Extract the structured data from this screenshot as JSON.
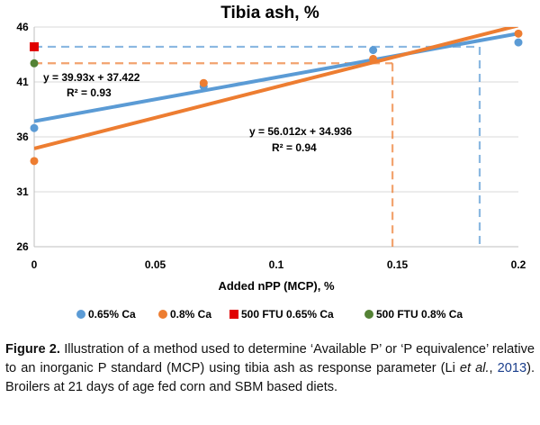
{
  "chart_data": {
    "type": "scatter",
    "title": "Tibia ash, %",
    "xlabel": "Added nPP (MCP), %",
    "ylabel": "",
    "xlim": [
      0,
      0.2
    ],
    "ylim": [
      26,
      46
    ],
    "x_ticks": [
      "0",
      "0.05",
      "0.1",
      "0.15",
      "0.2"
    ],
    "y_ticks": [
      "26",
      "31",
      "36",
      "41",
      "46"
    ],
    "series": [
      {
        "name": "0.65% Ca",
        "color": "#5b9bd5",
        "marker": "circle",
        "points": [
          [
            0,
            36.8
          ],
          [
            0.07,
            40.6
          ],
          [
            0.14,
            43.9
          ],
          [
            0.2,
            44.6
          ]
        ],
        "trendline": {
          "slope": 39.93,
          "intercept": 37.422,
          "equation": "y = 39.93x + 37.422",
          "r2": "R² = 0.93"
        }
      },
      {
        "name": "0.8% Ca",
        "color": "#ed7d31",
        "marker": "circle",
        "points": [
          [
            0,
            33.8
          ],
          [
            0.07,
            40.9
          ],
          [
            0.14,
            43.1
          ],
          [
            0.2,
            45.4
          ]
        ],
        "trendline": {
          "slope": 56.012,
          "intercept": 34.936,
          "equation": "y = 56.012x + 34.936",
          "r2": "R² = 0.94"
        }
      },
      {
        "name": "500 FTU 0.65% Ca",
        "color": "#e00000",
        "marker": "square",
        "points": [
          [
            0,
            44.2
          ]
        ],
        "equivalence_x": 0.184
      },
      {
        "name": "500 FTU 0.8% Ca",
        "color": "#548235",
        "marker": "circle",
        "points": [
          [
            0,
            42.7
          ]
        ],
        "equivalence_x": 0.148
      }
    ]
  },
  "caption": {
    "label": "Figure 2.",
    "text_1": " Illustration of a method used to determine ‘Available P’ or ‘P equivalence’ relative to an inorganic P standard (MCP) using tibia ash as response parameter (Li ",
    "italic": "et al.",
    "text_2": ", ",
    "year": "2013",
    "text_3": "). Broilers at 21 days of age fed corn and SBM based diets."
  }
}
